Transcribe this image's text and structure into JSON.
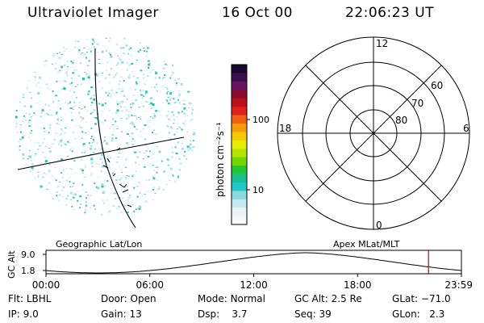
{
  "header": {
    "title": "Ultraviolet Imager",
    "date": "16 Oct 00",
    "time": "22:06:23 UT"
  },
  "colorbar": {
    "unit_label": "photon cm⁻²s⁻¹",
    "ticks": [
      "100",
      "10"
    ],
    "colors": [
      "#1a0a30",
      "#3a1050",
      "#6a1260",
      "#8a0a30",
      "#b8101a",
      "#e0201a",
      "#f06010",
      "#f59a08",
      "#f5c800",
      "#e6ec00",
      "#b4e600",
      "#6fd800",
      "#1fc834",
      "#1cbf90",
      "#20c8c8",
      "#8ad8e0",
      "#c8e8f0",
      "#e8f4f8",
      "#f6f8f8"
    ]
  },
  "polar": {
    "mlt_labels": {
      "top": "12",
      "left": "18",
      "right": "6",
      "bottom": "0"
    },
    "lat_labels": [
      "60",
      "70",
      "80"
    ]
  },
  "altitude_panel": {
    "left_label": "Geographic Lat/Lon",
    "right_label": "Apex MLat/MLT",
    "axis_title": "GC Alt",
    "y_ticks": [
      "9.0",
      "1.8"
    ],
    "x_ticks": [
      "00:00",
      "06:00",
      "12:00",
      "18:00",
      "23:59"
    ],
    "marker_color": "#c00000"
  },
  "info": {
    "filter_label": "Flt:",
    "filter_value": "LBHL",
    "ip_label": "IP:",
    "ip_value": "9.0",
    "door_label": "Door:",
    "door_value": "Open",
    "gain_label": "Gain:",
    "gain_value": "13",
    "mode_label": "Mode:",
    "mode_value": "Normal",
    "dsp_label": "Dsp:",
    "dsp_value": "3.7",
    "gcalt_label": "GC Alt:",
    "gcalt_value": "2.5 Re",
    "seq_label": "Seq:",
    "seq_value": "39",
    "glat_label": "GLat:",
    "glat_value": "−71.0",
    "glon_label": "GLon:",
    "glon_value": "2.3"
  }
}
